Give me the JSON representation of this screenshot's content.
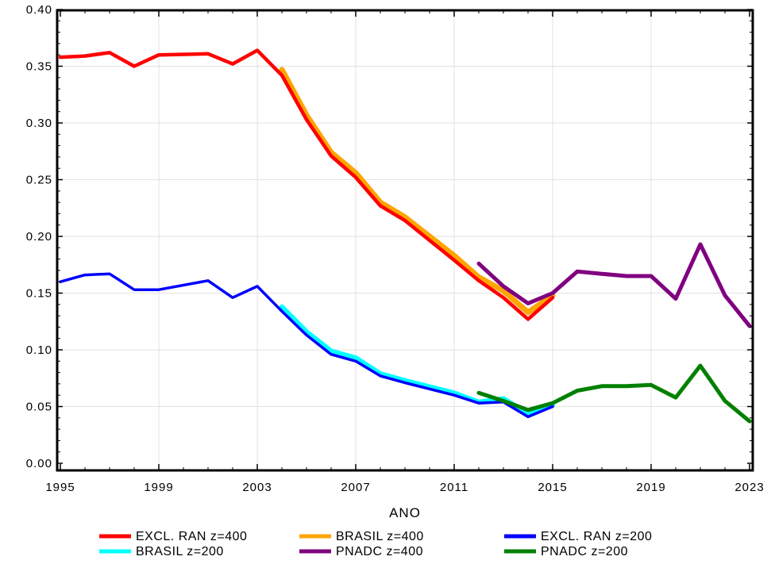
{
  "chart_data": {
    "type": "line",
    "title": "",
    "xlabel": "ANO",
    "ylabel": "",
    "xlim": [
      1995,
      2023
    ],
    "ylim": [
      0,
      0.4
    ],
    "x_ticks": [
      "1995",
      "1999",
      "2003",
      "2007",
      "2011",
      "2015",
      "2019",
      "2023"
    ],
    "y_ticks": [
      "0.00",
      "0.05",
      "0.10",
      "0.15",
      "0.20",
      "0.25",
      "0.30",
      "0.35",
      "0.40"
    ],
    "grid": true,
    "legend_position": "bottom",
    "series": [
      {
        "name": "BRASIL z=400",
        "color": "#FFA500",
        "x": [
          2004,
          2005,
          2006,
          2007,
          2008,
          2009,
          2011,
          2012,
          2013,
          2014,
          2015
        ],
        "y": [
          0.347,
          0.307,
          0.274,
          0.256,
          0.23,
          0.217,
          0.183,
          0.164,
          0.152,
          0.133,
          0.148
        ]
      },
      {
        "name": "EXCL. RAN z=400",
        "color": "#FF0000",
        "x": [
          1995,
          1996,
          1997,
          1998,
          1999,
          2001,
          2002,
          2003,
          2004,
          2005,
          2006,
          2007,
          2008,
          2009,
          2011,
          2012,
          2013,
          2014,
          2015
        ],
        "y": [
          0.358,
          0.359,
          0.362,
          0.35,
          0.36,
          0.361,
          0.352,
          0.364,
          0.342,
          0.303,
          0.271,
          0.252,
          0.227,
          0.214,
          0.179,
          0.161,
          0.146,
          0.127,
          0.146
        ]
      },
      {
        "name": "PNADC z=400",
        "color": "#800080",
        "x": [
          2012,
          2013,
          2014,
          2015,
          2016,
          2017,
          2018,
          2019,
          2020,
          2021,
          2022,
          2023
        ],
        "y": [
          0.176,
          0.156,
          0.141,
          0.15,
          0.169,
          0.167,
          0.165,
          0.165,
          0.145,
          0.193,
          0.148,
          0.121
        ]
      },
      {
        "name": "BRASIL z=200",
        "color": "#00FFFF",
        "x": [
          2004,
          2005,
          2006,
          2007,
          2008,
          2009,
          2011,
          2012,
          2013,
          2014,
          2015
        ],
        "y": [
          0.138,
          0.116,
          0.099,
          0.093,
          0.079,
          0.073,
          0.062,
          0.054,
          0.057,
          0.044,
          0.051
        ]
      },
      {
        "name": "EXCL. RAN z=200",
        "color": "#0000FF",
        "x": [
          1995,
          1996,
          1997,
          1998,
          1999,
          2001,
          2002,
          2003,
          2004,
          2005,
          2006,
          2007,
          2008,
          2009,
          2011,
          2012,
          2013,
          2014,
          2015
        ],
        "y": [
          0.16,
          0.166,
          0.167,
          0.153,
          0.153,
          0.161,
          0.146,
          0.156,
          0.134,
          0.113,
          0.096,
          0.09,
          0.077,
          0.071,
          0.06,
          0.053,
          0.054,
          0.041,
          0.05
        ]
      },
      {
        "name": "PNADC z=200",
        "color": "#008000",
        "x": [
          2012,
          2013,
          2014,
          2015,
          2016,
          2017,
          2018,
          2019,
          2020,
          2021,
          2022,
          2023
        ],
        "y": [
          0.062,
          0.055,
          0.047,
          0.053,
          0.064,
          0.068,
          0.068,
          0.069,
          0.058,
          0.086,
          0.055,
          0.037
        ]
      }
    ],
    "legend": [
      [
        "EXCL. RAN z=400",
        "BRASIL z=400",
        "EXCL. RAN z=200"
      ],
      [
        "BRASIL z=200",
        "PNADC z=400",
        "PNADC z=200"
      ]
    ]
  }
}
